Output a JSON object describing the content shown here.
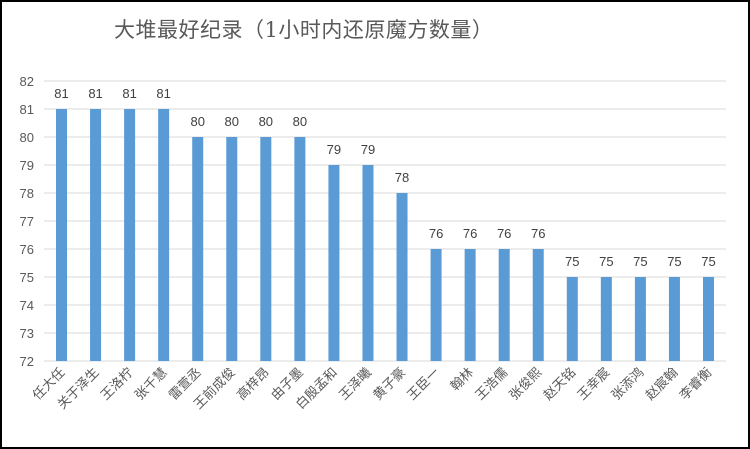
{
  "chart_data": {
    "type": "bar",
    "title": "大堆最好纪录（1小时内还原魔方数量）",
    "xlabel": "",
    "ylabel": "",
    "ylim": [
      72,
      82
    ],
    "yticks": [
      72,
      73,
      74,
      75,
      76,
      77,
      78,
      79,
      80,
      81,
      82
    ],
    "grid": true,
    "legend": null,
    "data_labels": true,
    "bar_color": "#5B9BD5",
    "categories": [
      "任大任",
      "关于泽生",
      "王洛柠",
      "张千慧",
      "雷萱丞",
      "王前成俊",
      "高梓昂",
      "由子墨",
      "白殷孟和",
      "王泽曦",
      "黄子豪",
      "王臣一",
      "翰林",
      "王浩儒",
      "张俊熙",
      "赵天铭",
      "王幸宸",
      "张添鸿",
      "赵宸翰",
      "李睿衡"
    ],
    "values": [
      81,
      81,
      81,
      81,
      80,
      80,
      80,
      80,
      79,
      79,
      78,
      76,
      76,
      76,
      76,
      75,
      75,
      75,
      75,
      75
    ]
  }
}
